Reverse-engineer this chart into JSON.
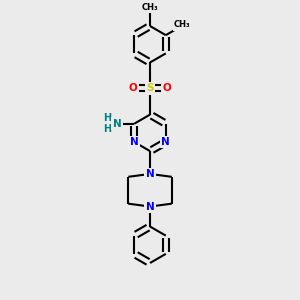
{
  "bg_color": "#ebebeb",
  "bond_color": "#000000",
  "N_color": "#0000ff",
  "O_color": "#ff0000",
  "S_color": "#cccc00",
  "NH2_color": "#008080",
  "line_width": 1.5,
  "fig_w": 3.0,
  "fig_h": 3.0,
  "dpi": 100,
  "xlim": [
    -1.8,
    1.8
  ],
  "ylim": [
    -2.6,
    2.6
  ]
}
